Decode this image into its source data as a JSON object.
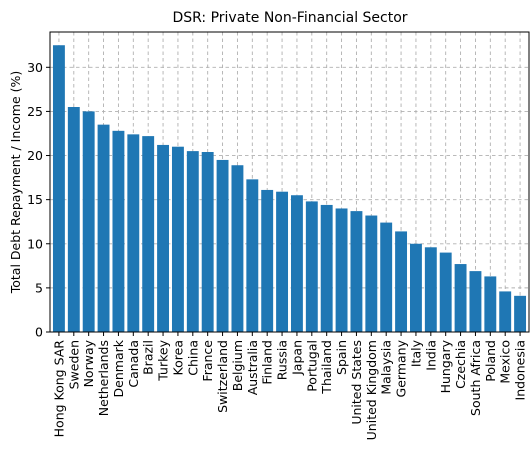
{
  "chart_data": {
    "type": "bar",
    "title": "DSR: Private Non-Financial Sector",
    "xlabel": "",
    "ylabel": "Total Debt Repayment / Income (%)",
    "ylim": [
      0,
      34
    ],
    "yticks": [
      0,
      5,
      10,
      15,
      20,
      25,
      30
    ],
    "grid": true,
    "bar_color": "#1f77b4",
    "grid_color": "#b0b0b0",
    "categories": [
      "Hong Kong SAR",
      "Sweden",
      "Norway",
      "Netherlands",
      "Denmark",
      "Canada",
      "Brazil",
      "Turkey",
      "Korea",
      "China",
      "France",
      "Switzerland",
      "Belgium",
      "Australia",
      "Finland",
      "Russia",
      "Japan",
      "Portugal",
      "Thailand",
      "Spain",
      "United States",
      "United Kingdom",
      "Malaysia",
      "Germany",
      "Italy",
      "India",
      "Hungary",
      "Czechia",
      "South Africa",
      "Poland",
      "Mexico",
      "Indonesia"
    ],
    "values": [
      32.5,
      25.5,
      25.0,
      23.5,
      22.8,
      22.4,
      22.2,
      21.2,
      21.0,
      20.5,
      20.4,
      19.5,
      18.9,
      17.3,
      16.1,
      15.9,
      15.5,
      14.8,
      14.4,
      14.0,
      13.7,
      13.2,
      12.4,
      11.4,
      10.0,
      9.6,
      9.0,
      7.7,
      6.9,
      6.3,
      4.6,
      4.1
    ]
  }
}
